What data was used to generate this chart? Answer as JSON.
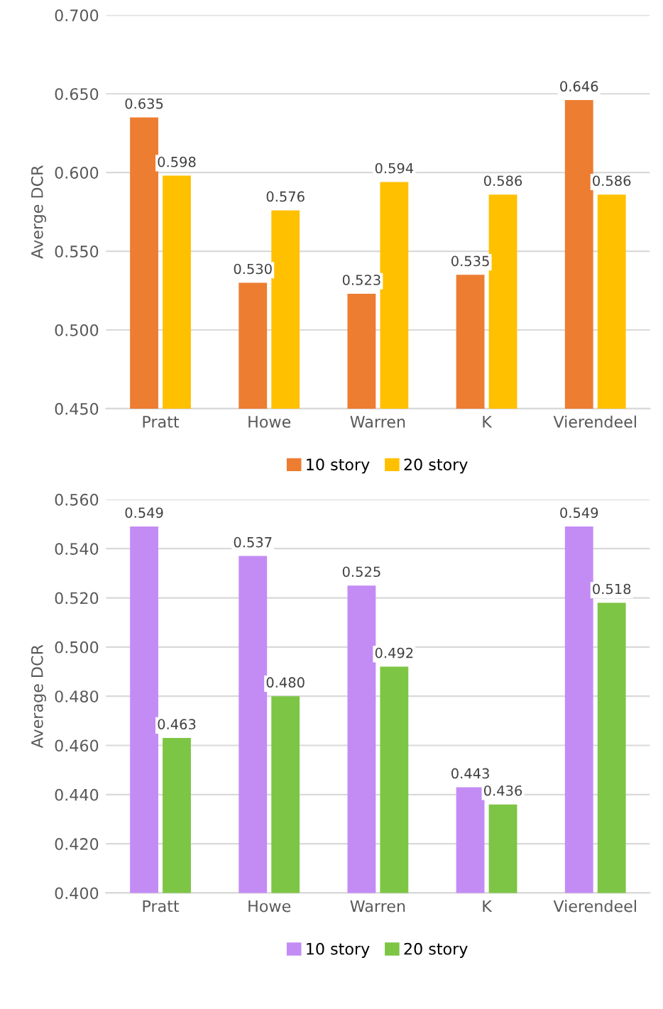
{
  "chart_data": [
    {
      "type": "bar",
      "ylabel": "Averge DCR",
      "categories": [
        "Pratt",
        "Howe",
        "Warren",
        "K",
        "Vierendeel"
      ],
      "series": [
        {
          "name": "10 story",
          "color": "#ed7d31",
          "values": [
            0.635,
            0.53,
            0.523,
            0.535,
            0.646
          ],
          "value_labels": [
            "0.635",
            "0.530",
            "0.523",
            "0.535",
            "0.646"
          ]
        },
        {
          "name": "20 story",
          "color": "#ffc000",
          "values": [
            0.598,
            0.576,
            0.594,
            0.586,
            0.586
          ],
          "value_labels": [
            "0.598",
            "0.576",
            "0.594",
            "0.586",
            "0.586"
          ]
        }
      ],
      "ylim": [
        0.45,
        0.7
      ],
      "yticks": [
        {
          "value": 0.45,
          "label": "0.450"
        },
        {
          "value": 0.5,
          "label": "0.500"
        },
        {
          "value": 0.55,
          "label": "0.550"
        },
        {
          "value": 0.6,
          "label": "0.600"
        },
        {
          "value": 0.65,
          "label": "0.650"
        },
        {
          "value": 0.7,
          "label": "0.700"
        }
      ],
      "grid": "y",
      "legend": "bottom"
    },
    {
      "type": "bar",
      "ylabel": "Average DCR",
      "categories": [
        "Pratt",
        "Howe",
        "Warren",
        "K",
        "Vierendeel"
      ],
      "series": [
        {
          "name": "10 story",
          "color": "#c38cf5",
          "values": [
            0.549,
            0.537,
            0.525,
            0.443,
            0.549
          ],
          "value_labels": [
            "0.549",
            "0.537",
            "0.525",
            "0.443",
            "0.549"
          ]
        },
        {
          "name": "20 story",
          "color": "#7dc544",
          "values": [
            0.463,
            0.48,
            0.492,
            0.436,
            0.518
          ],
          "value_labels": [
            "0.463",
            "0.480",
            "0.492",
            "0.436",
            "0.518"
          ]
        }
      ],
      "ylim": [
        0.4,
        0.56
      ],
      "yticks": [
        {
          "value": 0.4,
          "label": "0.400"
        },
        {
          "value": 0.42,
          "label": "0.420"
        },
        {
          "value": 0.44,
          "label": "0.440"
        },
        {
          "value": 0.46,
          "label": "0.460"
        },
        {
          "value": 0.48,
          "label": "0.480"
        },
        {
          "value": 0.5,
          "label": "0.500"
        },
        {
          "value": 0.52,
          "label": "0.520"
        },
        {
          "value": 0.54,
          "label": "0.540"
        },
        {
          "value": 0.56,
          "label": "0.560"
        }
      ],
      "grid": "y",
      "legend": "bottom"
    }
  ]
}
